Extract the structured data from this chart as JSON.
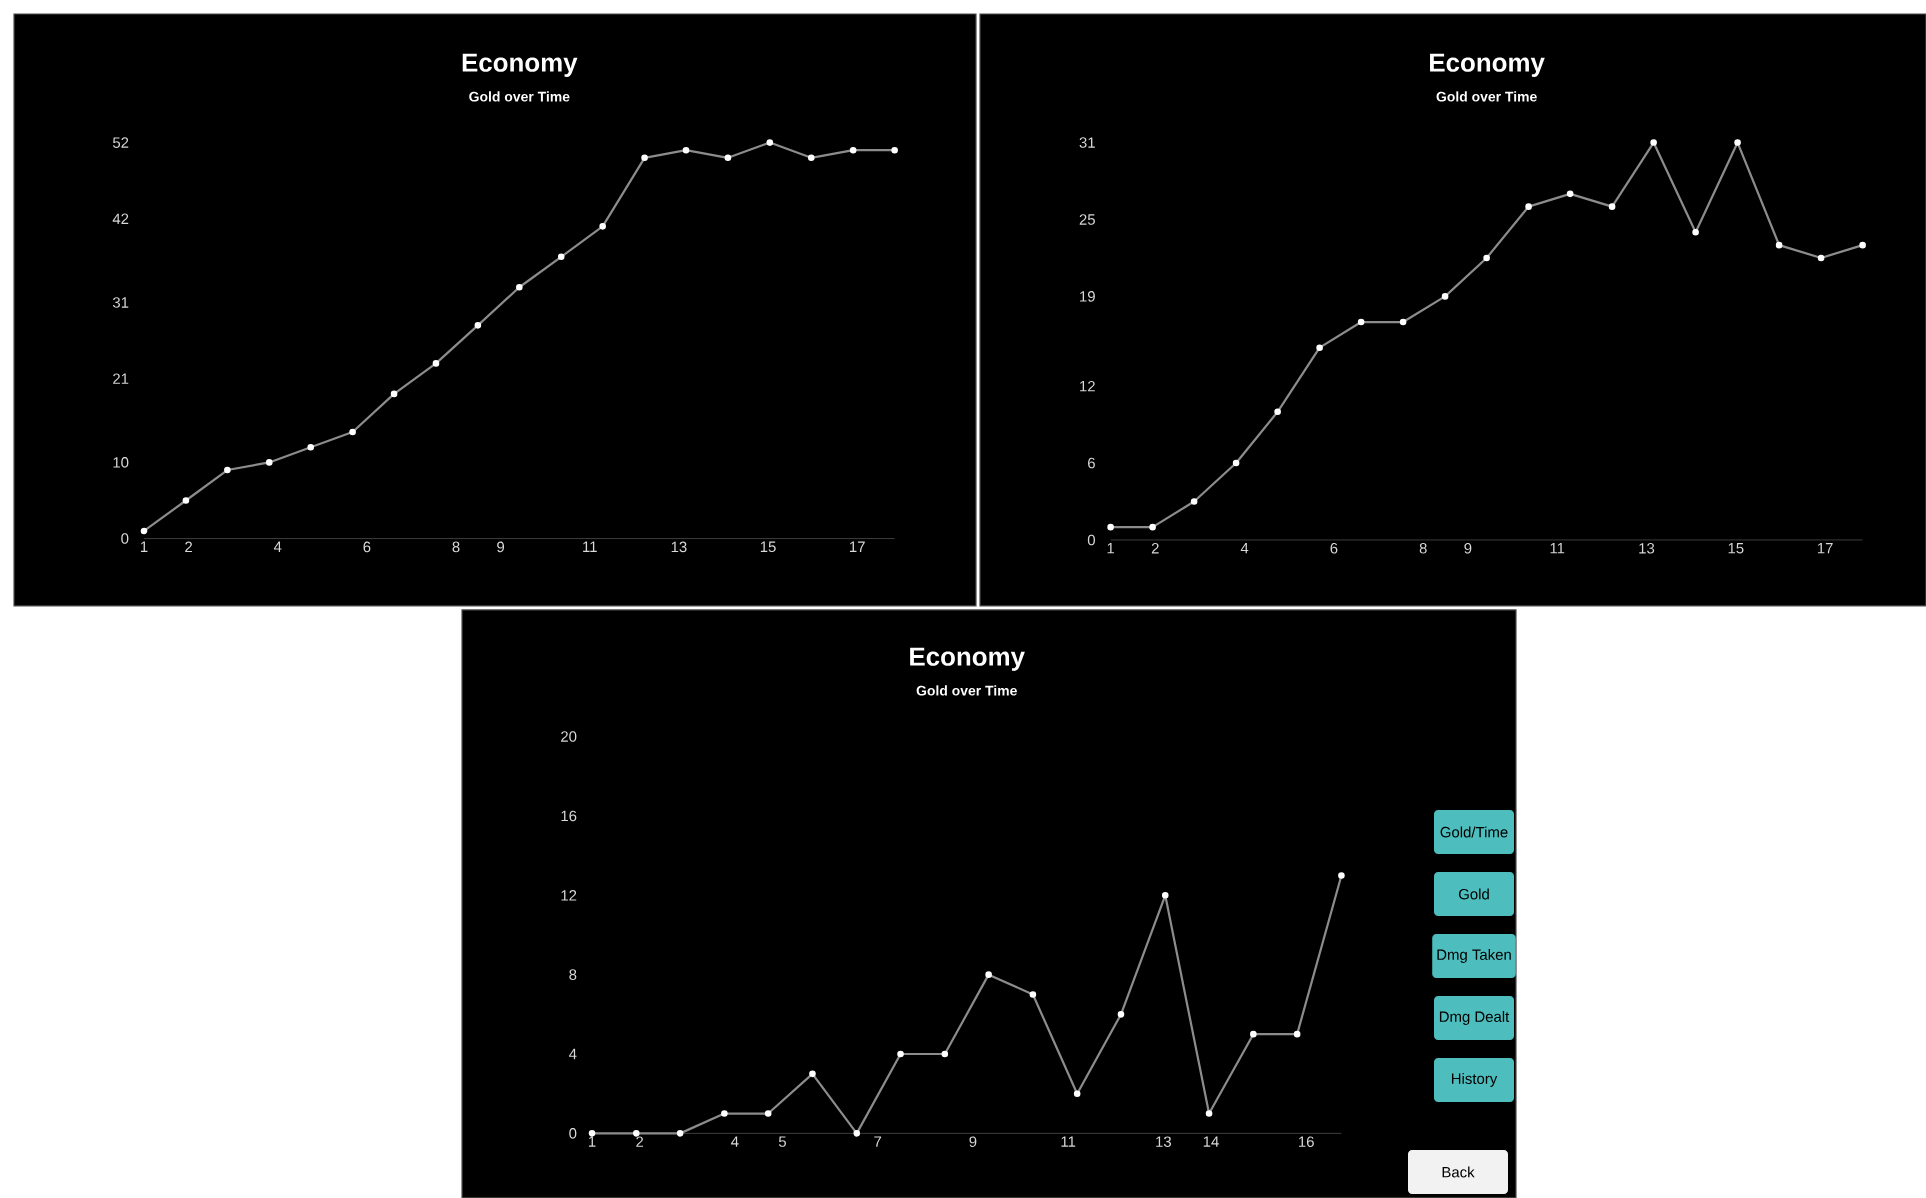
{
  "chart_data": [
    {
      "type": "line",
      "title": "Economy",
      "subtitle": "Gold over Time",
      "color": "#8c8c8c",
      "marker": "circle",
      "line_style": "solid",
      "x": [
        1,
        1.94,
        2.87,
        3.81,
        4.74,
        5.68,
        6.61,
        7.55,
        8.49,
        9.42,
        10.36,
        11.29,
        12.23,
        13.16,
        14.1,
        15.04,
        15.97,
        16.91,
        17.84
      ],
      "values": [
        1,
        5,
        9,
        10,
        12,
        14,
        19,
        23,
        28,
        33,
        37,
        41,
        50,
        51,
        50,
        52,
        50,
        51,
        51
      ],
      "xlim": [
        1,
        17.84
      ],
      "xticks": [
        1,
        2,
        4,
        6,
        8,
        9,
        11,
        13,
        15,
        17
      ],
      "ylim": [
        0,
        52
      ],
      "yticks": [
        0,
        10,
        21,
        31,
        42,
        52
      ]
    },
    {
      "type": "line",
      "title": "Economy",
      "subtitle": "Gold over Time",
      "color": "#8c8c8c",
      "marker": "circle",
      "line_style": "solid",
      "x": [
        1,
        1.94,
        2.87,
        3.81,
        4.74,
        5.68,
        6.61,
        7.55,
        8.49,
        9.42,
        10.36,
        11.29,
        12.23,
        13.16,
        14.1,
        15.04,
        15.97,
        16.91,
        17.84
      ],
      "values": [
        1,
        1,
        3,
        6,
        10,
        15,
        17,
        17,
        19,
        22,
        26,
        27,
        26,
        31,
        24,
        31,
        23,
        22,
        23
      ],
      "xlim": [
        1,
        17.84
      ],
      "xticks": [
        1,
        2,
        4,
        6,
        8,
        9,
        11,
        13,
        15,
        17
      ],
      "ylim": [
        0,
        31
      ],
      "yticks": [
        0,
        6,
        12,
        19,
        25,
        31
      ]
    },
    {
      "type": "line",
      "title": "Economy",
      "subtitle": "Gold over Time",
      "color": "#8c8c8c",
      "marker": "circle",
      "line_style": "solid",
      "x": [
        1,
        1.93,
        2.85,
        3.78,
        4.7,
        5.63,
        6.56,
        7.48,
        8.41,
        9.33,
        10.26,
        11.19,
        12.11,
        13.04,
        13.96,
        14.89,
        15.81,
        16.74
      ],
      "values": [
        0,
        0,
        0,
        1,
        1,
        3,
        0,
        4,
        4,
        8,
        7,
        2,
        6,
        12,
        1,
        5,
        5,
        13
      ],
      "xlim": [
        1,
        16.74
      ],
      "xticks": [
        1,
        2,
        4,
        5,
        7,
        9,
        11,
        13,
        14,
        16
      ],
      "ylim": [
        0,
        20
      ],
      "yticks": [
        0,
        4,
        8,
        12,
        16,
        20
      ],
      "annotations": [
        "Gold/Time",
        "Gold",
        "Dmg Taken",
        "Dmg Dealt",
        "History",
        "Back"
      ]
    }
  ]
}
